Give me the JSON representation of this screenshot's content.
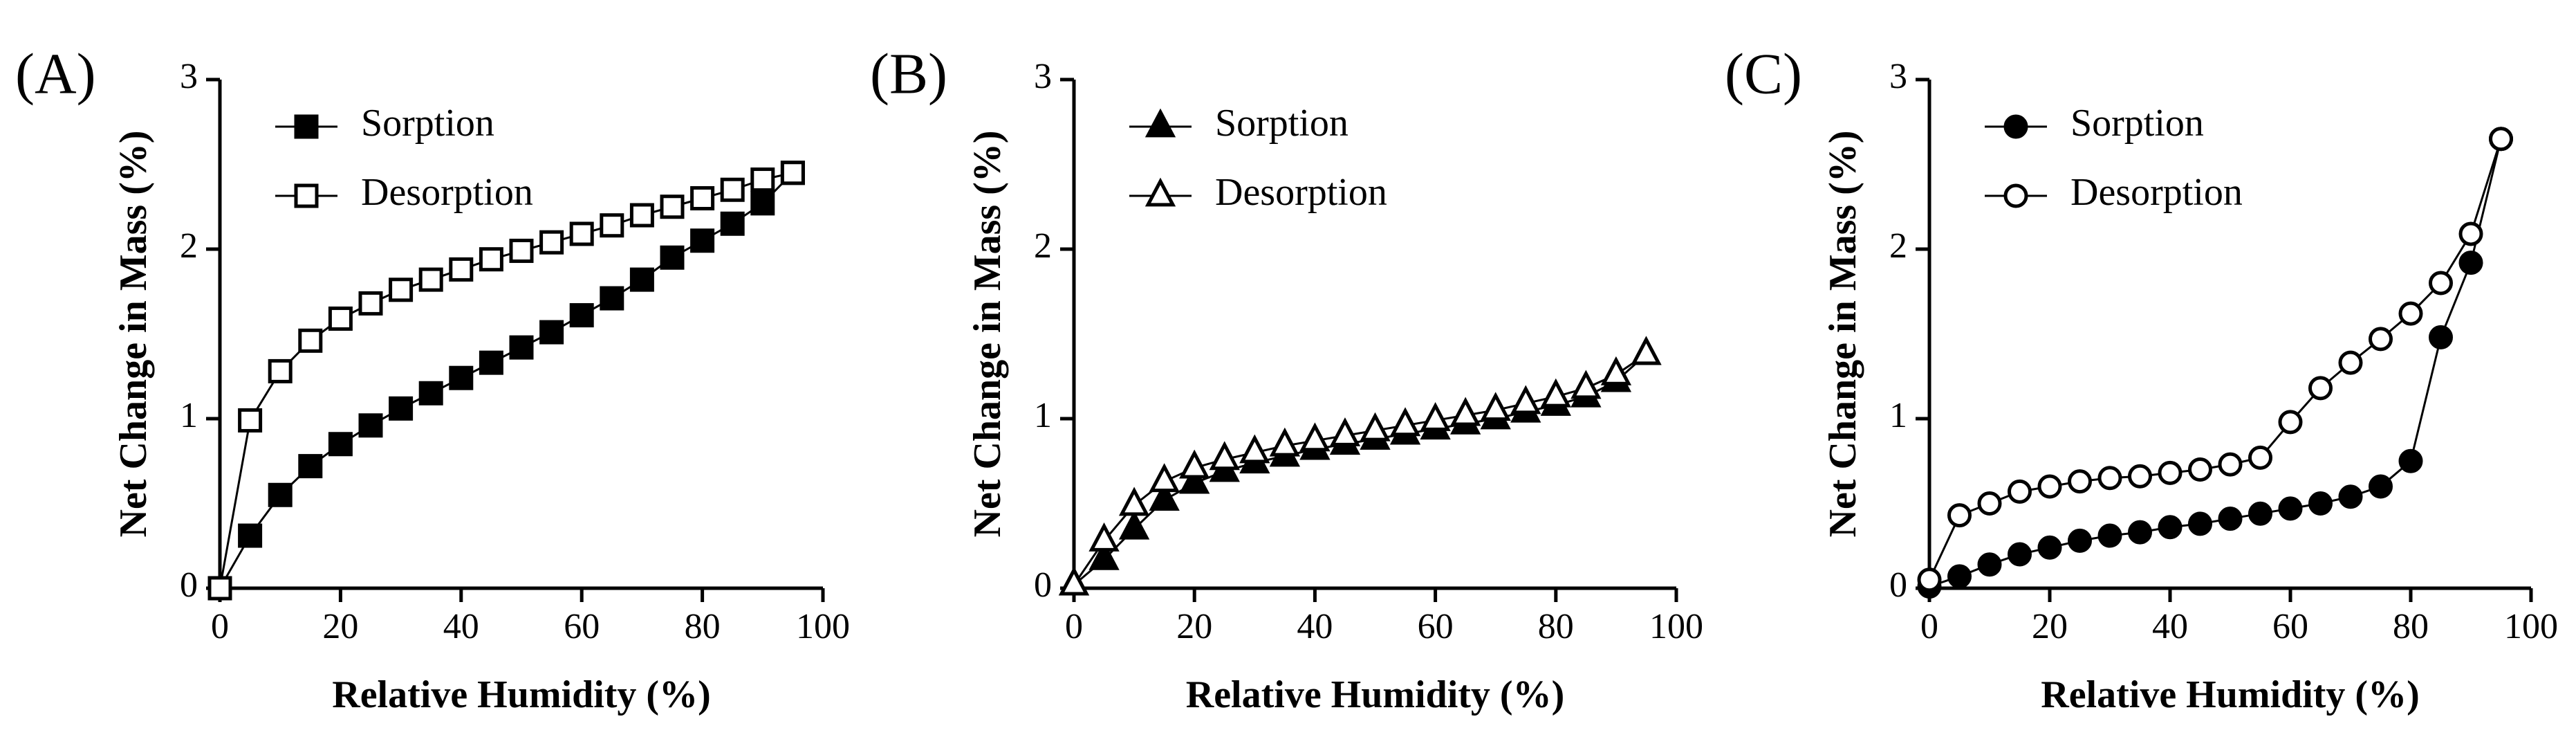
{
  "chart_data": [
    {
      "type": "line",
      "panel_label": "(A)",
      "xlabel": "Relative Humidity (%)",
      "ylabel": "Net Change in Mass (%)",
      "xlim": [
        0,
        100
      ],
      "ylim": [
        0,
        3
      ],
      "xticks": [
        "0",
        "20",
        "40",
        "60",
        "80",
        "100"
      ],
      "yticks": [
        "0",
        "1",
        "2",
        "3"
      ],
      "marker": "square",
      "grid": false,
      "legend_position": "top-left",
      "series": [
        {
          "name": "Sorption",
          "filled": true,
          "x": [
            0,
            5,
            10,
            15,
            20,
            25,
            30,
            35,
            40,
            45,
            50,
            55,
            60,
            65,
            70,
            75,
            80,
            85,
            90,
            95
          ],
          "y": [
            0.0,
            0.31,
            0.55,
            0.72,
            0.85,
            0.96,
            1.06,
            1.15,
            1.24,
            1.33,
            1.42,
            1.51,
            1.61,
            1.71,
            1.82,
            1.95,
            2.05,
            2.15,
            2.27,
            2.45
          ]
        },
        {
          "name": "Desorption",
          "filled": false,
          "x": [
            0,
            5,
            10,
            15,
            20,
            25,
            30,
            35,
            40,
            45,
            50,
            55,
            60,
            65,
            70,
            75,
            80,
            85,
            90,
            95
          ],
          "y": [
            0.0,
            0.99,
            1.28,
            1.46,
            1.59,
            1.68,
            1.76,
            1.82,
            1.88,
            1.94,
            1.99,
            2.04,
            2.09,
            2.14,
            2.2,
            2.25,
            2.3,
            2.35,
            2.41,
            2.45
          ]
        }
      ]
    },
    {
      "type": "line",
      "panel_label": "(B)",
      "xlabel": "Relative Humidity (%)",
      "ylabel": "Net Change in Mass (%)",
      "xlim": [
        0,
        100
      ],
      "ylim": [
        0,
        3
      ],
      "xticks": [
        "0",
        "20",
        "40",
        "60",
        "80",
        "100"
      ],
      "yticks": [
        "0",
        "1",
        "2",
        "3"
      ],
      "marker": "triangle",
      "grid": false,
      "legend_position": "top-left",
      "series": [
        {
          "name": "Sorption",
          "filled": true,
          "x": [
            0,
            5,
            10,
            15,
            20,
            25,
            30,
            35,
            40,
            45,
            50,
            55,
            60,
            65,
            70,
            75,
            80,
            85,
            90,
            95
          ],
          "y": [
            0.02,
            0.17,
            0.35,
            0.52,
            0.62,
            0.69,
            0.74,
            0.78,
            0.82,
            0.85,
            0.88,
            0.91,
            0.94,
            0.97,
            1.0,
            1.04,
            1.08,
            1.13,
            1.22,
            1.38
          ]
        },
        {
          "name": "Desorption",
          "filled": false,
          "x": [
            0,
            5,
            10,
            15,
            20,
            25,
            30,
            35,
            40,
            45,
            50,
            55,
            60,
            65,
            70,
            75,
            80,
            85,
            90,
            95
          ],
          "y": [
            0.02,
            0.28,
            0.49,
            0.63,
            0.71,
            0.76,
            0.8,
            0.84,
            0.87,
            0.9,
            0.93,
            0.96,
            0.99,
            1.02,
            1.05,
            1.09,
            1.13,
            1.18,
            1.26,
            1.38
          ]
        }
      ]
    },
    {
      "type": "line",
      "panel_label": "(C)",
      "xlabel": "Relative Humidity (%)",
      "ylabel": "Net Change in Mass (%)",
      "xlim": [
        0,
        100
      ],
      "ylim": [
        0,
        3
      ],
      "xticks": [
        "0",
        "20",
        "40",
        "60",
        "80",
        "100"
      ],
      "yticks": [
        "0",
        "1",
        "2",
        "3"
      ],
      "marker": "circle",
      "grid": false,
      "legend_position": "top-left",
      "series": [
        {
          "name": "Sorption",
          "filled": true,
          "x": [
            0,
            5,
            10,
            15,
            20,
            25,
            30,
            35,
            40,
            45,
            50,
            55,
            60,
            65,
            70,
            75,
            80,
            85,
            90,
            95
          ],
          "y": [
            0.01,
            0.07,
            0.14,
            0.2,
            0.24,
            0.28,
            0.31,
            0.33,
            0.36,
            0.38,
            0.41,
            0.44,
            0.47,
            0.5,
            0.54,
            0.6,
            0.75,
            1.48,
            1.92,
            2.65
          ]
        },
        {
          "name": "Desorption",
          "filled": false,
          "x": [
            0,
            5,
            10,
            15,
            20,
            25,
            30,
            35,
            40,
            45,
            50,
            55,
            60,
            65,
            70,
            75,
            80,
            85,
            90,
            95
          ],
          "y": [
            0.05,
            0.43,
            0.5,
            0.57,
            0.6,
            0.63,
            0.65,
            0.66,
            0.68,
            0.7,
            0.73,
            0.77,
            0.98,
            1.18,
            1.33,
            1.47,
            1.62,
            1.8,
            2.09,
            2.65
          ]
        }
      ]
    }
  ]
}
